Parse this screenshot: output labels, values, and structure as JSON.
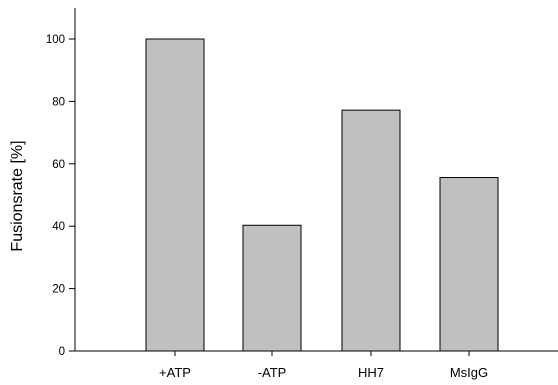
{
  "chart_data": {
    "type": "bar",
    "title": "",
    "xlabel": "",
    "ylabel": "Fusionsrate [%]",
    "categories": [
      "+ATP",
      "-ATP",
      "HH7",
      "MsIgG"
    ],
    "values": [
      100,
      40.3,
      77.2,
      55.6
    ],
    "ylim": [
      0,
      110
    ],
    "yticks": [
      0,
      20,
      40,
      60,
      80,
      100
    ],
    "grid": false,
    "legend": "none",
    "colors": {
      "bar_fill": "#c0c0c0",
      "bar_stroke": "#000000",
      "axis": "#000000"
    }
  }
}
